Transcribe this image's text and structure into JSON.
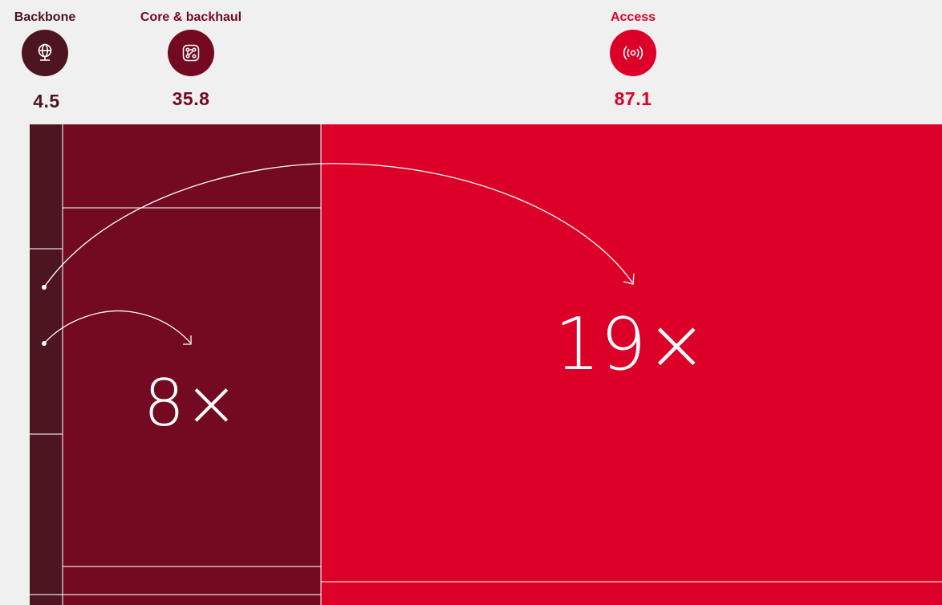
{
  "chart_data": {
    "type": "treemap",
    "categories": [
      {
        "key": "backbone",
        "label": "Backbone",
        "value": 4.5,
        "icon": "globe-network-icon",
        "color": "#4d1520"
      },
      {
        "key": "core",
        "label": "Core & backhaul",
        "value": 35.8,
        "icon": "network-nodes-icon",
        "color": "#730a21"
      },
      {
        "key": "access",
        "label": "Access",
        "value": 87.1,
        "icon": "wireless-signal-icon",
        "color": "#dc0028"
      }
    ],
    "annotations": [
      {
        "text": "8×",
        "from": "backbone",
        "to": "core"
      },
      {
        "text": "19×",
        "from": "backbone",
        "to": "access"
      }
    ]
  }
}
